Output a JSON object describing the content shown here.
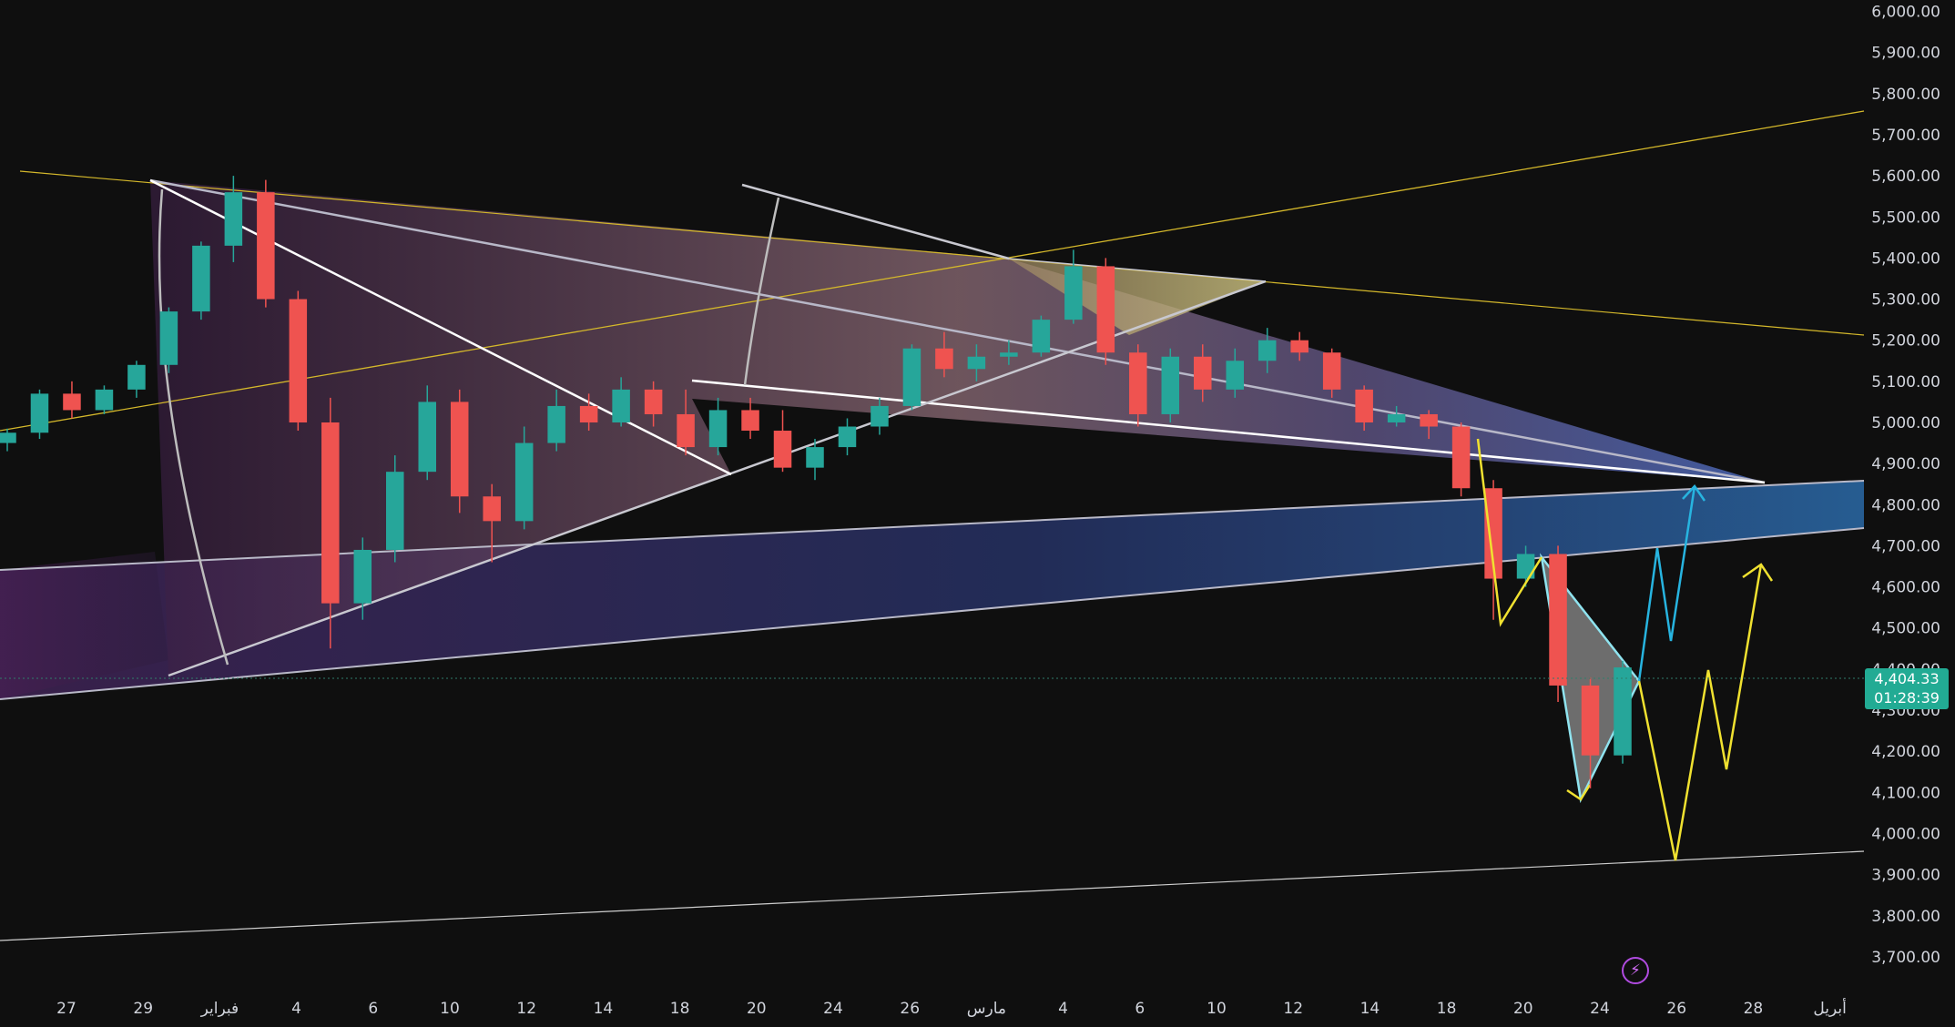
{
  "chart_data": {
    "type": "candlestick",
    "title": "",
    "xlabel": "",
    "ylabel": "",
    "y_axis_side": "right",
    "y_range": [
      3640,
      6010
    ],
    "y_ticks": [
      "6,000.00",
      "5,900.00",
      "5,800.00",
      "5,700.00",
      "5,600.00",
      "5,500.00",
      "5,400.00",
      "5,300.00",
      "5,200.00",
      "5,100.00",
      "5,000.00",
      "4,900.00",
      "4,800.00",
      "4,700.00",
      "4,600.00",
      "4,500.00",
      "4,400.00",
      "4,300.00",
      "4,200.00",
      "4,100.00",
      "4,000.00",
      "3,900.00",
      "3,800.00",
      "3,700.00"
    ],
    "y_tick_values": [
      6000,
      5900,
      5800,
      5700,
      5600,
      5500,
      5400,
      5300,
      5200,
      5100,
      5000,
      4900,
      4800,
      4700,
      4600,
      4500,
      4400,
      4300,
      4200,
      4100,
      4000,
      3900,
      3800,
      3700
    ],
    "x_ticks": [
      "27",
      "29",
      "فبراير",
      "4",
      "6",
      "10",
      "12",
      "14",
      "18",
      "20",
      "24",
      "26",
      "مارس",
      "4",
      "6",
      "10",
      "12",
      "14",
      "18",
      "20",
      "24",
      "26",
      "28",
      "أبريل"
    ],
    "x_tick_index": [
      0,
      2,
      4,
      6,
      8,
      10,
      12,
      14,
      16,
      18,
      20,
      22,
      24,
      26,
      28,
      30,
      32,
      34,
      36,
      38,
      40,
      42,
      44,
      46
    ],
    "last_price": "4,404.33",
    "countdown": "01:28:39",
    "grid": false,
    "colors": {
      "up": "#26a69a",
      "down": "#ef5350",
      "yellow": "#f0e130",
      "cyan": "#27b4e0",
      "white": "#ffffff",
      "badge": "#22ab94"
    },
    "series": [
      {
        "type": "candles",
        "from": "27",
        "to": "24",
        "ohlc": [
          [
            4950,
            4985,
            4930,
            4975
          ],
          [
            4975,
            5080,
            4960,
            5070
          ],
          [
            5070,
            5100,
            5010,
            5030
          ],
          [
            5030,
            5090,
            5020,
            5080
          ],
          [
            5080,
            5150,
            5060,
            5140
          ],
          [
            5140,
            5280,
            5120,
            5270
          ],
          [
            5270,
            5440,
            5250,
            5430
          ],
          [
            5430,
            5600,
            5390,
            5560
          ],
          [
            5560,
            5590,
            5280,
            5300
          ],
          [
            5300,
            5320,
            4980,
            5000
          ],
          [
            5000,
            5060,
            4450,
            4560
          ],
          [
            4560,
            4720,
            4520,
            4690
          ],
          [
            4690,
            4920,
            4660,
            4880
          ],
          [
            4880,
            5090,
            4860,
            5050
          ],
          [
            5050,
            5080,
            4780,
            4820
          ],
          [
            4820,
            4850,
            4660,
            4760
          ],
          [
            4760,
            4990,
            4740,
            4950
          ],
          [
            4950,
            5080,
            4930,
            5040
          ],
          [
            5040,
            5070,
            4980,
            5000
          ],
          [
            5000,
            5110,
            4990,
            5080
          ],
          [
            5080,
            5100,
            4990,
            5020
          ],
          [
            5020,
            5080,
            4920,
            4940
          ],
          [
            4940,
            5060,
            4920,
            5030
          ],
          [
            5030,
            5060,
            4960,
            4980
          ],
          [
            4980,
            5030,
            4880,
            4890
          ],
          [
            4890,
            4960,
            4860,
            4940
          ],
          [
            4940,
            5010,
            4920,
            4990
          ],
          [
            4990,
            5060,
            4970,
            5040
          ],
          [
            5040,
            5190,
            5030,
            5180
          ],
          [
            5180,
            5220,
            5110,
            5130
          ],
          [
            5130,
            5190,
            5100,
            5160
          ],
          [
            5160,
            5200,
            5140,
            5170
          ],
          [
            5170,
            5260,
            5160,
            5250
          ],
          [
            5250,
            5420,
            5240,
            5380
          ],
          [
            5380,
            5400,
            5140,
            5170
          ],
          [
            5170,
            5190,
            4990,
            5020
          ],
          [
            5020,
            5180,
            5000,
            5160
          ],
          [
            5160,
            5190,
            5050,
            5080
          ],
          [
            5080,
            5180,
            5060,
            5150
          ],
          [
            5150,
            5230,
            5120,
            5200
          ],
          [
            5200,
            5220,
            5150,
            5170
          ],
          [
            5170,
            5180,
            5060,
            5080
          ],
          [
            5080,
            5090,
            4980,
            5000
          ],
          [
            5000,
            5040,
            4990,
            5020
          ],
          [
            5020,
            5030,
            4960,
            4990
          ],
          [
            4990,
            5000,
            4820,
            4840
          ],
          [
            4840,
            4860,
            4520,
            4620
          ],
          [
            4620,
            4700,
            4600,
            4680
          ],
          [
            4680,
            4700,
            4320,
            4360
          ],
          [
            4360,
            4380,
            4110,
            4190
          ],
          [
            4190,
            4420,
            4170,
            4404
          ]
        ]
      }
    ],
    "drawings": {
      "yellow_projection": "down to ~3,980, then up toward ~4,680",
      "cyan_projection": "up toward ~4,870",
      "channel_band": "blue support band ~4,680 to ~4,880"
    }
  },
  "badge": {
    "price": "4,404.33",
    "timer": "01:28:39"
  },
  "icons": {
    "flash": "⚡"
  }
}
